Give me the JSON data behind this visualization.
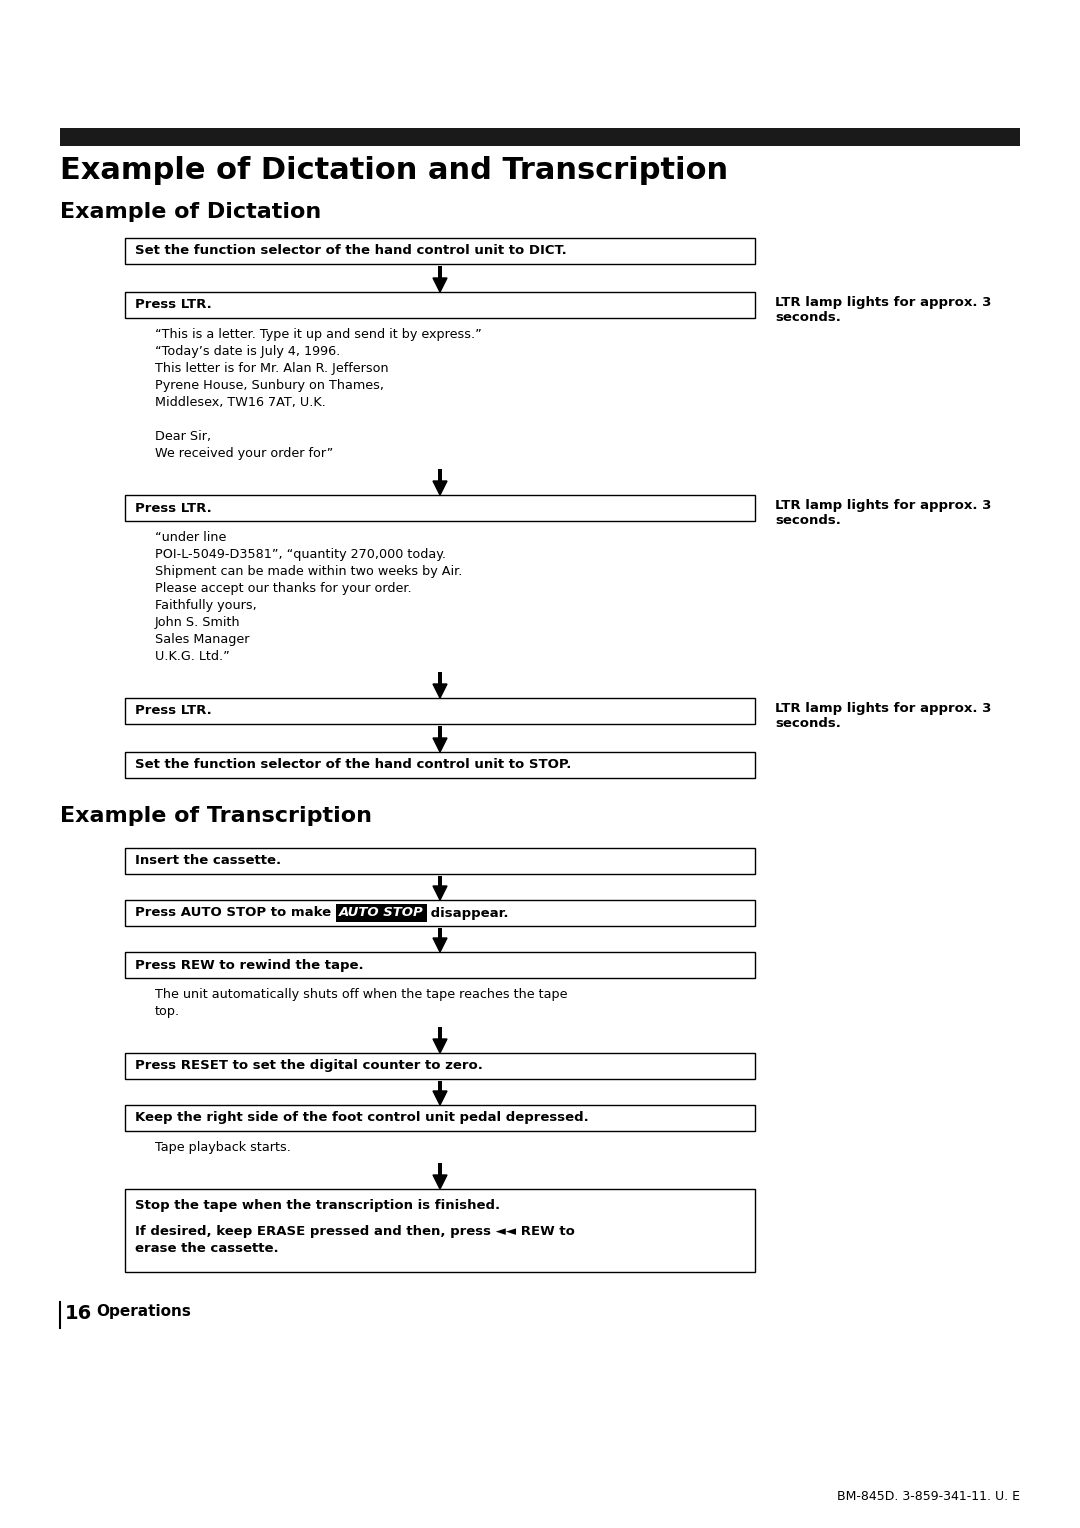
{
  "bg_color": "#ffffff",
  "main_title": "Example of Dictation and Transcription",
  "section1_title": "Example of Dictation",
  "section2_title": "Example of Transcription",
  "top_bar_color": "#1a1a1a",
  "page_number": "16",
  "page_label": "Operations",
  "footer_text": "BM-845D. 3-859-341-11. U. E",
  "dict_box1": "Set the function selector of the hand control unit to DICT.",
  "dict_box2": "Press LTR.",
  "dict_box3": "Press LTR.",
  "dict_box4": "Press LTR.",
  "dict_box5": "Set the function selector of the hand control unit to STOP.",
  "ltr_note": "LTR lamp lights for approx. 3\nseconds.",
  "dict_text1_lines": [
    "“This is a letter. Type it up and send it by express.”",
    "“Today’s date is July 4, 1996.",
    "This letter is for Mr. Alan R. Jefferson",
    "Pyrene House, Sunbury on Thames,",
    "Middlesex, TW16 7AT, U.K.",
    "",
    "Dear Sir,",
    "We received your order for”"
  ],
  "dict_text2_lines": [
    "“under line",
    "POI-L-5049-D3581”, “quantity 270,000 today.",
    "Shipment can be made within two weeks by Air.",
    "Please accept our thanks for your order.",
    "Faithfully yours,",
    "John S. Smith",
    "Sales Manager",
    "U.K.G. Ltd.”"
  ],
  "trans_box1": "Insert the cassette.",
  "trans_box2_pre": "Press AUTO STOP to make ",
  "trans_box2_hl": "AUTO STOP",
  "trans_box2_post": " disappear.",
  "trans_box3": "Press REW to rewind the tape.",
  "trans_note1_lines": [
    "The unit automatically shuts off when the tape reaches the tape",
    "top."
  ],
  "trans_box4": "Press RESET to set the digital counter to zero.",
  "trans_box5": "Keep the right side of the foot control unit pedal depressed.",
  "trans_note2": "Tape playback starts.",
  "trans_box6_line1": "Stop the tape when the transcription is finished.",
  "trans_box6_line2": "",
  "trans_box6_line3": "If desired, keep ERASE pressed and then, press ◄◄ REW to",
  "trans_box6_line4": "erase the cassette."
}
